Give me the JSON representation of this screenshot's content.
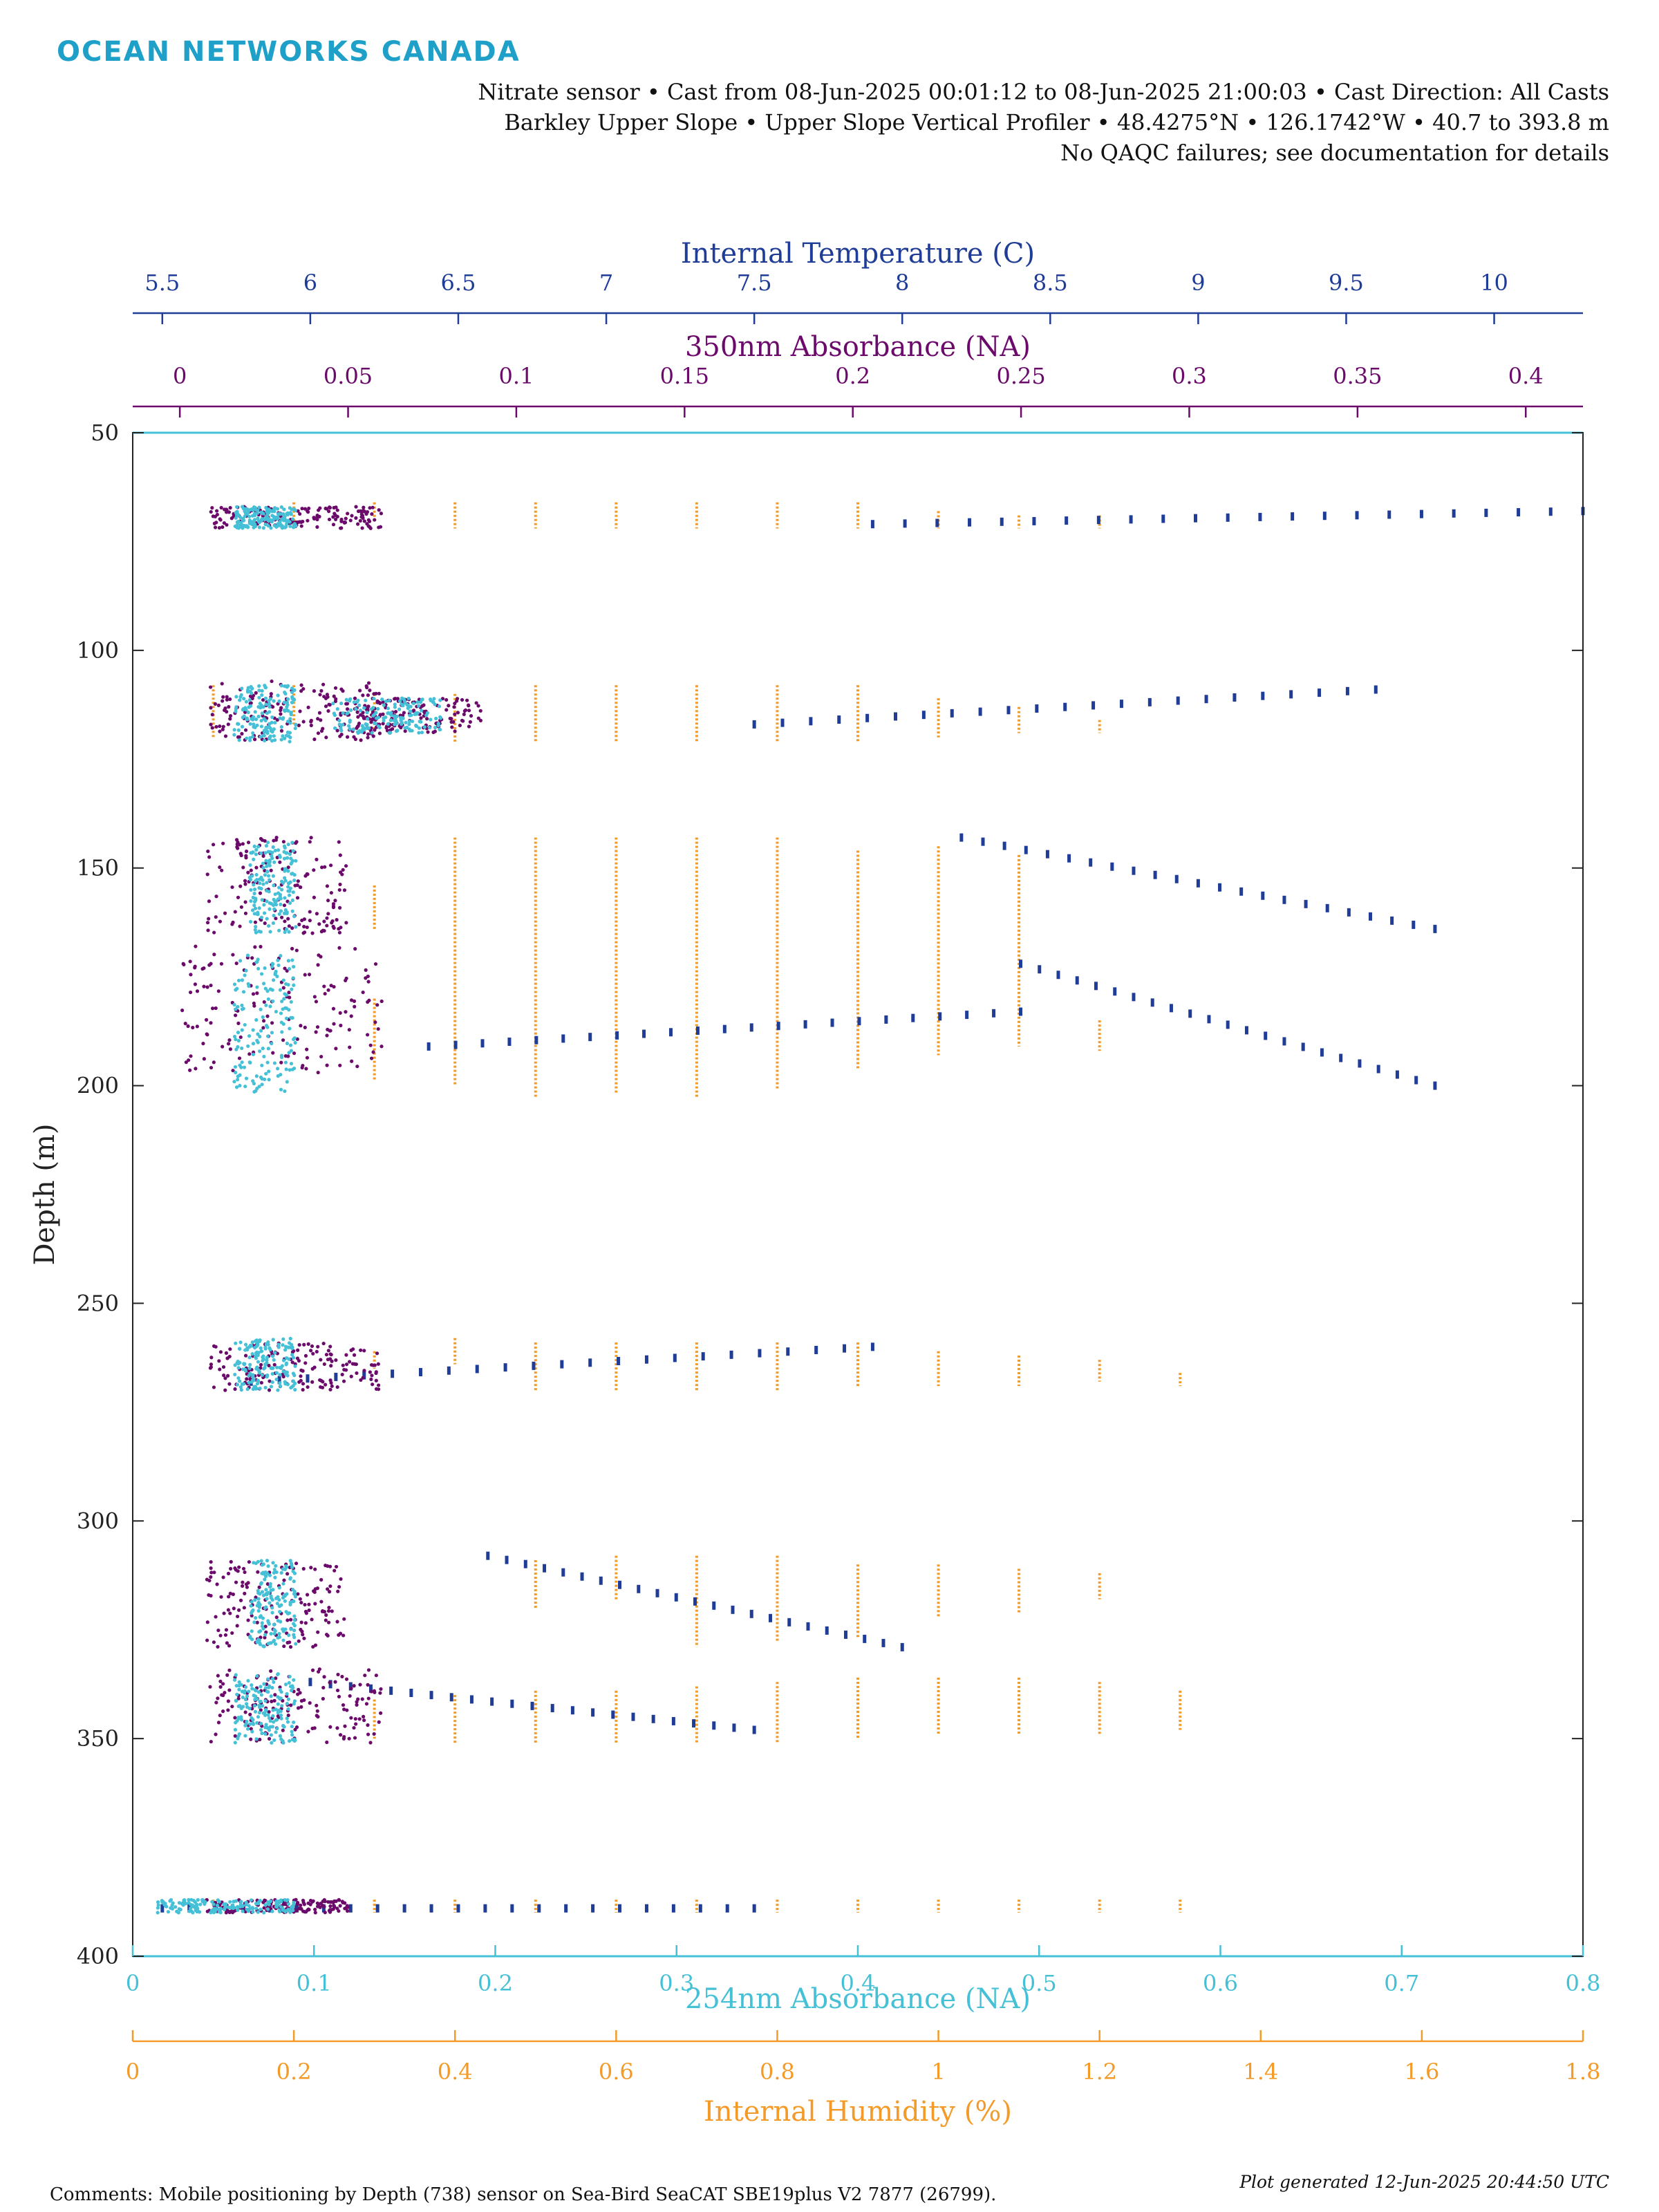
{
  "brand": "OCEAN NETWORKS CANADA",
  "header_lines": [
    "Nitrate sensor • Cast from 08-Jun-2025 00:01:12 to 08-Jun-2025 21:00:03 • Cast Direction:  All Casts",
    "Barkley Upper Slope • Upper Slope Vertical Profiler • 48.4275°N • 126.1742°W • 40.7 to 393.8 m",
    "No QAQC failures; see documentation for details"
  ],
  "footer": {
    "comments": "Comments: Mobile positioning by Depth (738) sensor on Sea-Bird SeaCAT SBE19plus V2 7877 (26799).",
    "generated": "Plot generated 12-Jun-2025 20:44:50 UTC"
  },
  "colors": {
    "temperature": "#1f3c96",
    "a350": "#6b0a6b",
    "a254": "#45c0d6",
    "humidity": "#f39a28"
  },
  "chart_data": {
    "type": "scatter",
    "ylabel": "Depth (m)",
    "y_reversed": true,
    "ylim": [
      50,
      400
    ],
    "yticks": [
      50,
      100,
      150,
      200,
      250,
      300,
      350,
      400
    ],
    "axes": {
      "temperature": {
        "label": "Internal Temperature (C)",
        "position": "top-outer",
        "lim": [
          5.4,
          10.3
        ],
        "ticks": [
          5.5,
          6,
          6.5,
          7,
          7.5,
          8,
          8.5,
          9,
          9.5,
          10
        ],
        "tick_labels": [
          "5.5",
          "6",
          "6.5",
          "7",
          "7.5",
          "8",
          "8.5",
          "9",
          "9.5",
          "10"
        ]
      },
      "a350": {
        "label": "350nm Absorbance (NA)",
        "position": "top-inner",
        "lim": [
          -0.014,
          0.417
        ],
        "ticks": [
          0,
          0.05,
          0.1,
          0.15,
          0.2,
          0.25,
          0.3,
          0.35,
          0.4
        ],
        "tick_labels": [
          "0",
          "0.05",
          "0.1",
          "0.15",
          "0.2",
          "0.25",
          "0.3",
          "0.35",
          "0.4"
        ]
      },
      "a254": {
        "label": "254nm Absorbance (NA)",
        "position": "bottom-inner",
        "lim": [
          0,
          0.8
        ],
        "ticks": [
          0,
          0.1,
          0.2,
          0.3,
          0.4,
          0.5,
          0.6,
          0.7,
          0.8
        ],
        "tick_labels": [
          "0",
          "0.1",
          "0.2",
          "0.3",
          "0.4",
          "0.5",
          "0.6",
          "0.7",
          "0.8"
        ]
      },
      "humidity": {
        "label": "Internal Humidity (%)",
        "position": "bottom-outer",
        "lim": [
          0,
          1.8
        ],
        "ticks": [
          0,
          0.2,
          0.4,
          0.6,
          0.8,
          1,
          1.2,
          1.4,
          1.6,
          1.8
        ],
        "tick_labels": [
          "0",
          "0.2",
          "0.4",
          "0.6",
          "0.8",
          "1",
          "1.2",
          "1.4",
          "1.6",
          "1.8"
        ]
      }
    },
    "series": [
      {
        "key": "humidity",
        "x_axis": "humidity",
        "segments": [
          {
            "x": 0.2,
            "y0": 66,
            "y1": 72
          },
          {
            "x": 0.3,
            "y0": 66,
            "y1": 70
          },
          {
            "x": 0.4,
            "y0": 66,
            "y1": 72
          },
          {
            "x": 0.5,
            "y0": 66,
            "y1": 72
          },
          {
            "x": 0.6,
            "y0": 66,
            "y1": 72
          },
          {
            "x": 0.7,
            "y0": 66,
            "y1": 72
          },
          {
            "x": 0.8,
            "y0": 66,
            "y1": 72
          },
          {
            "x": 0.9,
            "y0": 66,
            "y1": 72
          },
          {
            "x": 1.0,
            "y0": 68,
            "y1": 72
          },
          {
            "x": 1.1,
            "y0": 69,
            "y1": 72
          },
          {
            "x": 1.2,
            "y0": 69,
            "y1": 72
          },
          {
            "x": 0.1,
            "y0": 108,
            "y1": 120
          },
          {
            "x": 0.2,
            "y0": 108,
            "y1": 117
          },
          {
            "x": 0.3,
            "y0": 110,
            "y1": 118
          },
          {
            "x": 0.4,
            "y0": 110,
            "y1": 121
          },
          {
            "x": 0.5,
            "y0": 108,
            "y1": 121
          },
          {
            "x": 0.6,
            "y0": 108,
            "y1": 121
          },
          {
            "x": 0.7,
            "y0": 108,
            "y1": 121
          },
          {
            "x": 0.8,
            "y0": 108,
            "y1": 121
          },
          {
            "x": 0.9,
            "y0": 108,
            "y1": 121
          },
          {
            "x": 1.0,
            "y0": 111,
            "y1": 120
          },
          {
            "x": 1.1,
            "y0": 113,
            "y1": 119
          },
          {
            "x": 1.2,
            "y0": 116,
            "y1": 119
          },
          {
            "x": 0.3,
            "y0": 154,
            "y1": 164
          },
          {
            "x": 0.4,
            "y0": 143,
            "y1": 200
          },
          {
            "x": 0.5,
            "y0": 143,
            "y1": 203
          },
          {
            "x": 0.6,
            "y0": 143,
            "y1": 202
          },
          {
            "x": 0.7,
            "y0": 143,
            "y1": 203
          },
          {
            "x": 0.8,
            "y0": 143,
            "y1": 201
          },
          {
            "x": 0.9,
            "y0": 146,
            "y1": 196
          },
          {
            "x": 1.0,
            "y0": 145,
            "y1": 193
          },
          {
            "x": 1.1,
            "y0": 147,
            "y1": 191
          },
          {
            "x": 1.2,
            "y0": 185,
            "y1": 192
          },
          {
            "x": 0.3,
            "y0": 180,
            "y1": 199
          },
          {
            "x": 0.3,
            "y0": 261,
            "y1": 265
          },
          {
            "x": 0.4,
            "y0": 258,
            "y1": 264
          },
          {
            "x": 0.5,
            "y0": 259,
            "y1": 270
          },
          {
            "x": 0.6,
            "y0": 259,
            "y1": 270
          },
          {
            "x": 0.7,
            "y0": 259,
            "y1": 270
          },
          {
            "x": 0.8,
            "y0": 259,
            "y1": 270
          },
          {
            "x": 0.9,
            "y0": 259,
            "y1": 269
          },
          {
            "x": 1.0,
            "y0": 261,
            "y1": 269
          },
          {
            "x": 1.1,
            "y0": 262,
            "y1": 269
          },
          {
            "x": 1.2,
            "y0": 263,
            "y1": 268
          },
          {
            "x": 1.3,
            "y0": 266,
            "y1": 269
          },
          {
            "x": 0.5,
            "y0": 309,
            "y1": 320
          },
          {
            "x": 0.6,
            "y0": 308,
            "y1": 318
          },
          {
            "x": 0.7,
            "y0": 308,
            "y1": 329
          },
          {
            "x": 0.8,
            "y0": 308,
            "y1": 328
          },
          {
            "x": 0.9,
            "y0": 310,
            "y1": 327
          },
          {
            "x": 1.0,
            "y0": 310,
            "y1": 322
          },
          {
            "x": 1.1,
            "y0": 311,
            "y1": 321
          },
          {
            "x": 1.2,
            "y0": 312,
            "y1": 318
          },
          {
            "x": 0.3,
            "y0": 341,
            "y1": 350
          },
          {
            "x": 0.4,
            "y0": 340,
            "y1": 351
          },
          {
            "x": 0.5,
            "y0": 339,
            "y1": 351
          },
          {
            "x": 0.6,
            "y0": 339,
            "y1": 351
          },
          {
            "x": 0.7,
            "y0": 338,
            "y1": 351
          },
          {
            "x": 0.8,
            "y0": 337,
            "y1": 351
          },
          {
            "x": 0.9,
            "y0": 336,
            "y1": 350
          },
          {
            "x": 1.0,
            "y0": 336,
            "y1": 349
          },
          {
            "x": 1.1,
            "y0": 336,
            "y1": 349
          },
          {
            "x": 1.2,
            "y0": 337,
            "y1": 349
          },
          {
            "x": 1.3,
            "y0": 339,
            "y1": 348
          },
          {
            "x": 0.1,
            "y0": 387,
            "y1": 390
          },
          {
            "x": 0.2,
            "y0": 387,
            "y1": 390
          },
          {
            "x": 0.3,
            "y0": 387,
            "y1": 390
          },
          {
            "x": 0.4,
            "y0": 387,
            "y1": 390
          },
          {
            "x": 0.5,
            "y0": 387,
            "y1": 390
          },
          {
            "x": 0.6,
            "y0": 387,
            "y1": 390
          },
          {
            "x": 0.7,
            "y0": 387,
            "y1": 390
          },
          {
            "x": 0.8,
            "y0": 387,
            "y1": 390
          },
          {
            "x": 0.9,
            "y0": 387,
            "y1": 390
          },
          {
            "x": 1.0,
            "y0": 387,
            "y1": 390
          },
          {
            "x": 1.1,
            "y0": 387,
            "y1": 390
          },
          {
            "x": 1.2,
            "y0": 387,
            "y1": 390
          },
          {
            "x": 1.3,
            "y0": 387,
            "y1": 390
          }
        ]
      },
      {
        "key": "temperature",
        "x_axis": "temperature",
        "clusters": [
          {
            "x0": 7.9,
            "y0": 71,
            "x1": 10.3,
            "y1": 68
          },
          {
            "x0": 7.5,
            "y0": 117,
            "x1": 9.6,
            "y1": 109
          },
          {
            "x0": 8.2,
            "y0": 143,
            "x1": 9.8,
            "y1": 164
          },
          {
            "x0": 6.4,
            "y0": 191,
            "x1": 8.4,
            "y1": 183
          },
          {
            "x0": 8.4,
            "y0": 172,
            "x1": 9.8,
            "y1": 200
          },
          {
            "x0": 5.8,
            "y0": 268,
            "x1": 7.9,
            "y1": 260
          },
          {
            "x0": 6.6,
            "y0": 308,
            "x1": 8.0,
            "y1": 329
          },
          {
            "x0": 6.0,
            "y0": 337,
            "x1": 7.5,
            "y1": 348
          },
          {
            "x0": 5.5,
            "y0": 389,
            "x1": 7.5,
            "y1": 389
          }
        ]
      },
      {
        "key": "a350",
        "x_axis": "a350",
        "blobs": [
          {
            "x0": 0.0,
            "x1": 0.06,
            "y0": 67,
            "y1": 72
          },
          {
            "x0": 0.0,
            "x1": 0.06,
            "y0": 107,
            "y1": 121
          },
          {
            "x0": 0.04,
            "x1": 0.09,
            "y0": 111,
            "y1": 119
          },
          {
            "x0": 0.0,
            "x1": 0.05,
            "y0": 143,
            "y1": 165
          },
          {
            "x0": -0.01,
            "x1": 0.06,
            "y0": 168,
            "y1": 197
          },
          {
            "x0": 0.0,
            "x1": 0.06,
            "y0": 259,
            "y1": 270
          },
          {
            "x0": 0.0,
            "x1": 0.05,
            "y0": 309,
            "y1": 329
          },
          {
            "x0": 0.0,
            "x1": 0.06,
            "y0": 334,
            "y1": 351
          },
          {
            "x0": 0.0,
            "x1": 0.05,
            "y0": 387,
            "y1": 390
          }
        ]
      },
      {
        "key": "a254",
        "x_axis": "a254",
        "blobs": [
          {
            "x0": 0.05,
            "x1": 0.09,
            "y0": 67,
            "y1": 72
          },
          {
            "x0": 0.05,
            "x1": 0.09,
            "y0": 108,
            "y1": 121
          },
          {
            "x0": 0.1,
            "x1": 0.17,
            "y0": 111,
            "y1": 119
          },
          {
            "x0": 0.06,
            "x1": 0.09,
            "y0": 144,
            "y1": 165
          },
          {
            "x0": 0.05,
            "x1": 0.09,
            "y0": 170,
            "y1": 202
          },
          {
            "x0": 0.05,
            "x1": 0.09,
            "y0": 258,
            "y1": 270
          },
          {
            "x0": 0.06,
            "x1": 0.09,
            "y0": 309,
            "y1": 329
          },
          {
            "x0": 0.05,
            "x1": 0.09,
            "y0": 335,
            "y1": 351
          },
          {
            "x0": 0.0,
            "x1": 0.09,
            "y0": 387,
            "y1": 390
          }
        ]
      }
    ],
    "grid": false
  }
}
